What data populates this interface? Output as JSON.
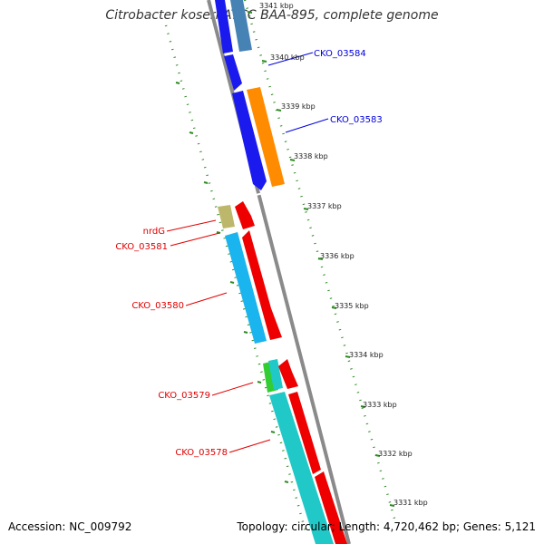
{
  "title": "Citrobacter koseri ATCC BAA-895, complete genome",
  "accession": "Accession: NC_009792",
  "summary": "Topology: circular; Length: 4,720,462 bp; Genes: 5,121",
  "ticks": [
    "3341 kbp",
    "3340 kbp",
    "3339 kbp",
    "3338 kbp",
    "3337 kbp",
    "3336 kbp",
    "3335 kbp",
    "3334 kbp",
    "3333 kbp",
    "3332 kbp",
    "3331 kbp"
  ],
  "genes_forward": {
    "CKO_03584": "CKO_03584",
    "CKO_03583": "CKO_03583"
  },
  "genes_reverse": {
    "nrdG": "nrdG",
    "CKO_03581": "CKO_03581",
    "CKO_03580": "CKO_03580",
    "CKO_03579": "CKO_03579",
    "CKO_03578": "CKO_03578"
  },
  "colors": {
    "backbone": "#8a8a8a",
    "ruler": "#2e8b22",
    "forward_label": "#0000dd",
    "reverse_label": "#e00000",
    "blue": "#1a1aee",
    "steel": "#4682b4",
    "orange": "#ff8c00",
    "red": "#ee0000",
    "cyan": "#1ab4ee",
    "teal": "#20c8c8",
    "khaki": "#bdb76b",
    "green": "#32cd32"
  }
}
